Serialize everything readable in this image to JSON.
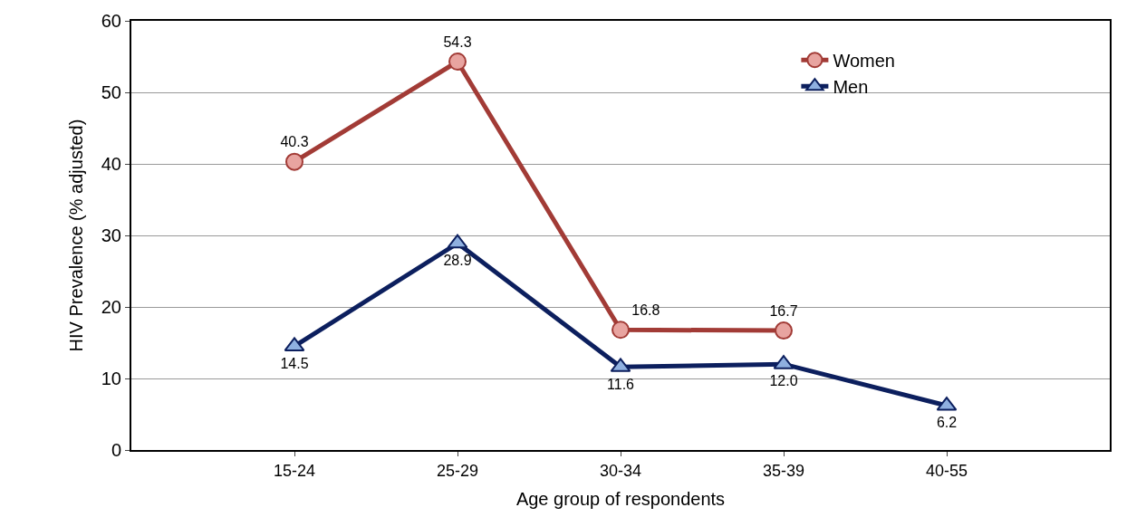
{
  "chart_data": {
    "type": "line",
    "xlabel": "Age group of respondents",
    "ylabel": "HIV Prevalence (% adjusted)",
    "categories": [
      null,
      "15-24",
      "25-29",
      "30-34",
      "35-39",
      "40-55",
      null
    ],
    "series": [
      {
        "name": "Women",
        "color": "#a23b36",
        "marker": "circle",
        "values": [
          null,
          40.3,
          54.3,
          16.8,
          16.7,
          null,
          null
        ],
        "value_labels": [
          null,
          "40.3",
          "54.3",
          "16.8",
          "16.7",
          null,
          null
        ]
      },
      {
        "name": "Men",
        "color": "#0c1f5e",
        "marker": "triangle",
        "values": [
          null,
          14.5,
          28.9,
          11.6,
          12.0,
          6.2,
          null
        ],
        "value_labels": [
          null,
          "14.5",
          "28.9",
          "11.6",
          "12.0",
          "6.2",
          null
        ]
      }
    ],
    "ylim": [
      0,
      60
    ],
    "yticks": [
      0,
      10,
      20,
      30,
      40,
      50,
      60
    ],
    "grid": "y",
    "legend": "top right"
  }
}
